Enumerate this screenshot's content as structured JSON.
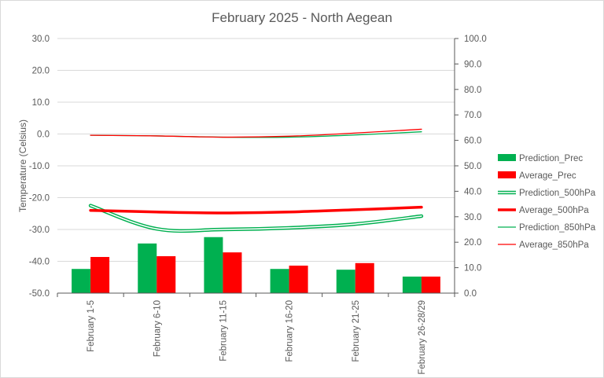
{
  "chart_data": {
    "type": "bar",
    "title": "February 2025 - North Aegean",
    "ylabel": "Temperature (Celsius)",
    "y2label": "",
    "xlabel": "",
    "categories": [
      "February 1-5",
      "February 6-10",
      "February 11-15",
      "February 16-20",
      "February 21-25",
      "February 26-28/29"
    ],
    "y_left": {
      "min": -50,
      "max": 30,
      "step": 10,
      "ticks": [
        "-50.0",
        "-40.0",
        "-30.0",
        "-20.0",
        "-10.0",
        "0.0",
        "10.0",
        "20.0",
        "30.0"
      ]
    },
    "y_right": {
      "min": 0,
      "max": 100,
      "step": 10,
      "ticks": [
        "0.0",
        "10.0",
        "20.0",
        "30.0",
        "40.0",
        "50.0",
        "60.0",
        "70.0",
        "80.0",
        "90.0",
        "100.0"
      ]
    },
    "grid": true,
    "legend_position": "right",
    "series": [
      {
        "name": "Prediction_Prec",
        "kind": "bar",
        "axis": "right",
        "color": "#00b050",
        "values": [
          9.5,
          19.5,
          22,
          9.5,
          9.2,
          6.5
        ]
      },
      {
        "name": "Average_Prec",
        "kind": "bar",
        "axis": "right",
        "color": "#ff0000",
        "values": [
          14.2,
          14.5,
          16,
          10.8,
          11.8,
          6.5
        ]
      },
      {
        "name": "Prediction_500hPa",
        "kind": "line",
        "axis": "left",
        "style": "double",
        "color": "#00b050",
        "values": [
          -22.5,
          -29.8,
          -30,
          -29.5,
          -28.3,
          -25.8
        ]
      },
      {
        "name": "Average_500hPa",
        "kind": "line",
        "axis": "left",
        "style": "thick",
        "color": "#ff0000",
        "values": [
          -24,
          -24.5,
          -24.8,
          -24.5,
          -23.8,
          -23
        ]
      },
      {
        "name": "Prediction_850hPa",
        "kind": "line",
        "axis": "left",
        "style": "thin",
        "color": "#00b050",
        "values": [
          -0.4,
          -0.6,
          -1,
          -1,
          -0.3,
          0.7
        ]
      },
      {
        "name": "Average_850hPa",
        "kind": "line",
        "axis": "left",
        "style": "thin",
        "color": "#ff0000",
        "values": [
          -0.4,
          -0.6,
          -1,
          -0.7,
          0.3,
          1.5
        ]
      }
    ]
  }
}
